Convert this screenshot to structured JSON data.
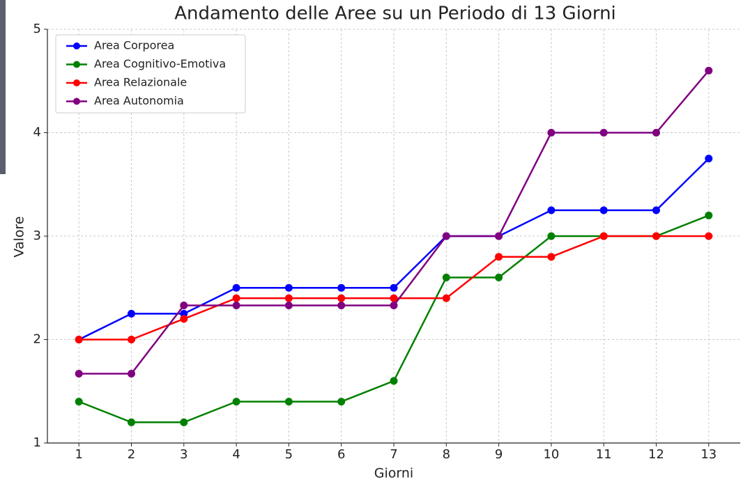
{
  "chart_data": {
    "type": "line",
    "title": "Andamento delle Aree su un Periodo di 13 Giorni",
    "xlabel": "Giorni",
    "ylabel": "Valore",
    "x": [
      1,
      2,
      3,
      4,
      5,
      6,
      7,
      8,
      9,
      10,
      11,
      12,
      13
    ],
    "series": [
      {
        "name": "Area Corporea",
        "color": "#0000ff",
        "values": [
          2,
          2.25,
          2.25,
          2.5,
          2.5,
          2.5,
          2.5,
          3,
          3,
          3.25,
          3.25,
          3.25,
          3.75
        ]
      },
      {
        "name": "Area Cognitivo-Emotiva",
        "color": "#008000",
        "values": [
          1.4,
          1.2,
          1.2,
          1.4,
          1.4,
          1.4,
          1.6,
          2.6,
          2.6,
          3,
          3,
          3,
          3.2
        ]
      },
      {
        "name": "Area Relazionale",
        "color": "#ff0000",
        "values": [
          2,
          2,
          2.2,
          2.4,
          2.4,
          2.4,
          2.4,
          2.4,
          2.8,
          2.8,
          3,
          3,
          3
        ]
      },
      {
        "name": "Area Autonomia",
        "color": "#800080",
        "values": [
          1.67,
          1.67,
          2.33,
          2.33,
          2.33,
          2.33,
          2.33,
          3,
          3,
          4,
          4,
          4,
          4.6
        ]
      }
    ],
    "xlim": [
      0.4,
      13.6
    ],
    "ylim": [
      1,
      5
    ],
    "xticks": [
      1,
      2,
      3,
      4,
      5,
      6,
      7,
      8,
      9,
      10,
      11,
      12,
      13
    ],
    "yticks": [
      1,
      2,
      3,
      4,
      5
    ],
    "grid": true,
    "legend": "upper-left"
  }
}
